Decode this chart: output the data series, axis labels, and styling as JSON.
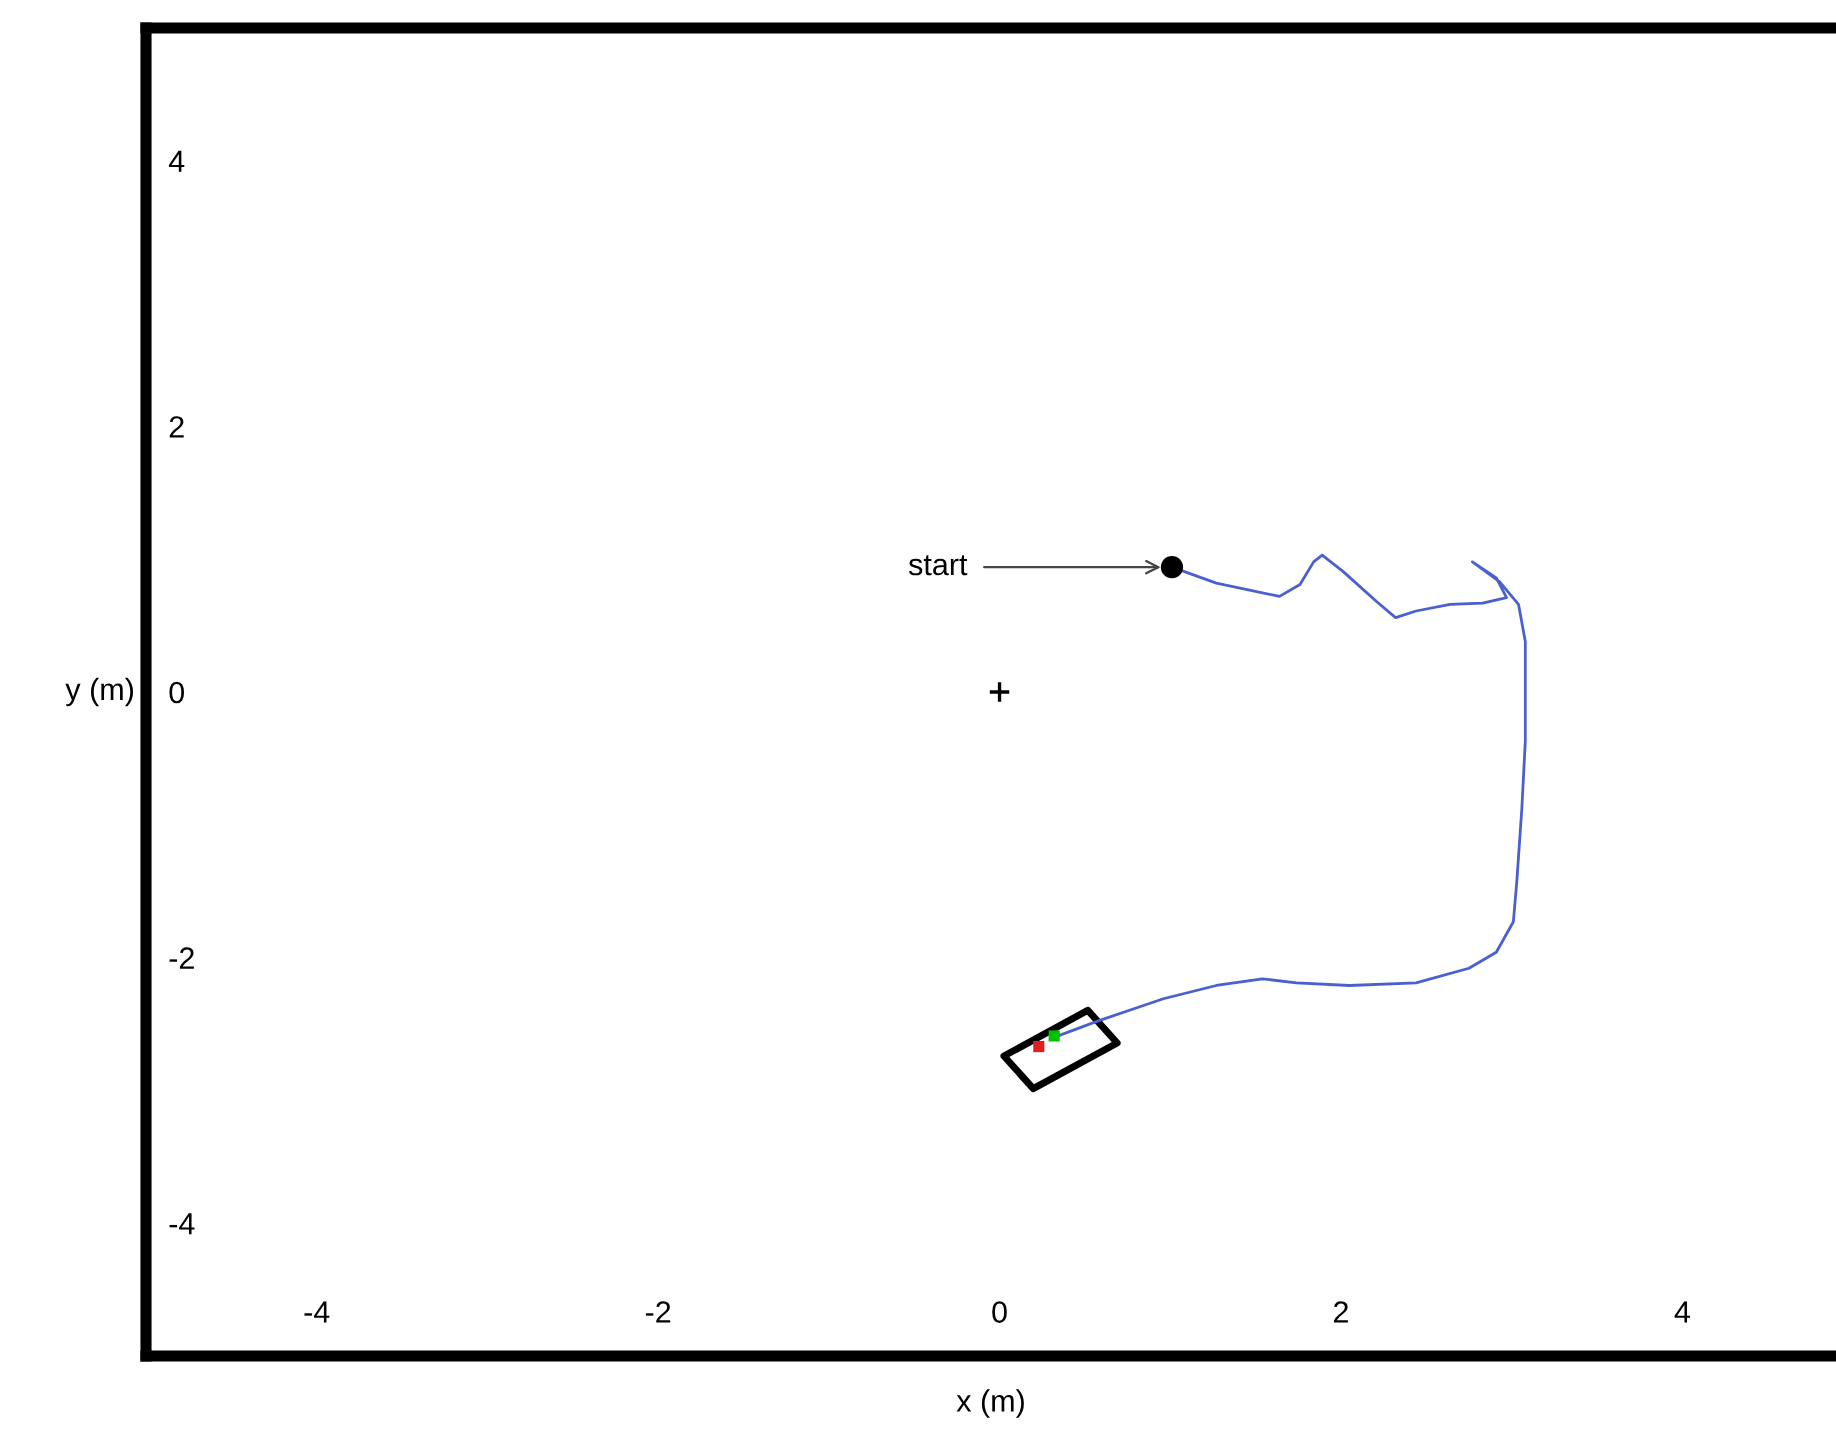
{
  "chart_data": {
    "type": "line",
    "xlabel": "x (m)",
    "ylabel": "y (m)",
    "xlim": [
      -5,
      4.9
    ],
    "ylim": [
      -5,
      5
    ],
    "xticks": [
      -4,
      -2,
      0,
      2,
      4
    ],
    "yticks": [
      -4,
      -2,
      0,
      2,
      4
    ],
    "grid": false,
    "annotations": [
      {
        "text": "start",
        "x": 1.01,
        "y": 0.94
      }
    ],
    "series": [
      {
        "color": "#4a5fd0",
        "line_style": "solid",
        "x": [
          1.01,
          1.27,
          1.64,
          1.76,
          1.84,
          1.89,
          2.01,
          2.21,
          2.32,
          2.44,
          2.64,
          2.83,
          2.97,
          2.91,
          2.77,
          2.93,
          3.04,
          3.08,
          3.08,
          3.06,
          3.03,
          3.01,
          2.91,
          2.75,
          2.44,
          2.05,
          1.74,
          1.54,
          1.27,
          0.96,
          0.57,
          0.3
        ],
        "values": [
          0.94,
          0.82,
          0.72,
          0.81,
          0.98,
          1.03,
          0.91,
          0.68,
          0.56,
          0.61,
          0.66,
          0.67,
          0.71,
          0.86,
          0.98,
          0.83,
          0.66,
          0.38,
          -0.37,
          -0.87,
          -1.43,
          -1.73,
          -1.96,
          -2.08,
          -2.19,
          -2.21,
          -2.19,
          -2.16,
          -2.21,
          -2.31,
          -2.48,
          -2.61
        ]
      },
      {
        "type": "scatter",
        "color": "#000000",
        "marker": "circle",
        "x": [
          1.01
        ],
        "values": [
          0.94
        ]
      },
      {
        "type": "scatter",
        "color": "#000000",
        "marker": "cross",
        "x": [
          0.0
        ],
        "values": [
          0.0
        ]
      },
      {
        "type": "scatter",
        "color": "#00c000",
        "marker": "square",
        "x": [
          0.32
        ],
        "values": [
          -2.59
        ]
      },
      {
        "type": "scatter",
        "color": "#e02020",
        "marker": "square",
        "x": [
          0.23
        ],
        "values": [
          -2.67
        ]
      }
    ]
  }
}
